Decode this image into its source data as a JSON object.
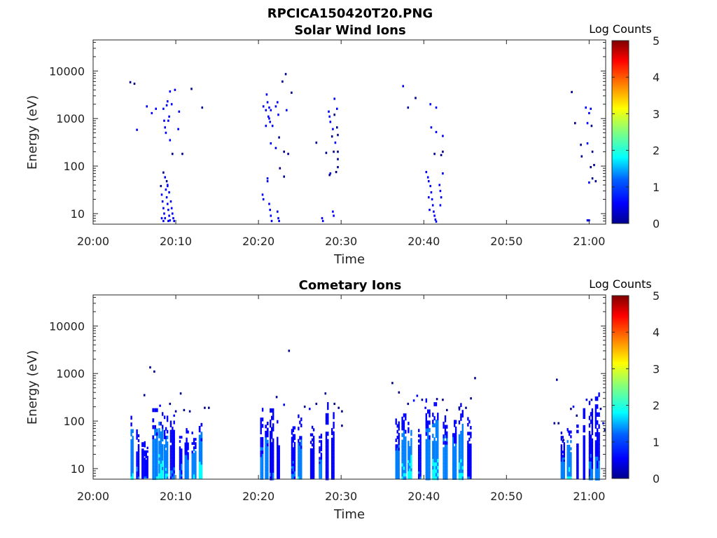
{
  "figure_title": "RPCICA150420T20.PNG",
  "colors": {
    "colormap": [
      "#00008f",
      "#0000ff",
      "#0080ff",
      "#00ffff",
      "#80ff80",
      "#ffff00",
      "#ff8000",
      "#ff0000",
      "#800000"
    ]
  },
  "chart_data": [
    {
      "type": "heatmap",
      "title": "Solar Wind Ions",
      "xlabel": "Time",
      "ylabel": "Energy (eV)",
      "x_ticks": [
        "20:00",
        "20:10",
        "20:20",
        "20:30",
        "20:40",
        "20:50",
        "21:00"
      ],
      "x_tick_minutes": [
        0,
        10,
        20,
        30,
        40,
        50,
        60
      ],
      "xlim_minutes": [
        0,
        62
      ],
      "y_scale": "log",
      "ylim": [
        6,
        45000
      ],
      "y_ticks": [
        "10",
        "100",
        "1000",
        "10000"
      ],
      "y_tick_values": [
        10,
        100,
        1000,
        10000
      ],
      "colorbar": {
        "label": "Log Counts",
        "range": [
          0,
          5
        ],
        "ticks": [
          "0",
          "1",
          "2",
          "3",
          "4",
          "5"
        ]
      },
      "points": [
        [
          4.5,
          5800,
          0.3
        ],
        [
          5.0,
          5400,
          0.3
        ],
        [
          5.3,
          580,
          0.4
        ],
        [
          6.5,
          1800,
          0.5
        ],
        [
          7.1,
          1300,
          0.4
        ],
        [
          7.6,
          1600,
          0.5
        ],
        [
          8.5,
          1600,
          0.5
        ],
        [
          8.6,
          900,
          0.6
        ],
        [
          8.7,
          650,
          0.7
        ],
        [
          8.9,
          1900,
          0.6
        ],
        [
          9.0,
          2300,
          0.5
        ],
        [
          9.2,
          1100,
          0.7
        ],
        [
          9.3,
          3700,
          0.4
        ],
        [
          9.5,
          2000,
          0.5
        ],
        [
          9.3,
          350,
          0.4
        ],
        [
          9.1,
          900,
          0.6
        ],
        [
          8.8,
          500,
          0.5
        ],
        [
          9.9,
          4000,
          0.4
        ],
        [
          10.4,
          1400,
          0.4
        ],
        [
          9.6,
          180,
          0.3
        ],
        [
          10.3,
          600,
          0.4
        ],
        [
          10.8,
          180,
          0.3
        ],
        [
          11.9,
          4200,
          0.3
        ],
        [
          13.2,
          1700,
          0.3
        ],
        [
          8.5,
          73,
          0.3
        ],
        [
          8.7,
          58,
          0.4
        ],
        [
          8.9,
          48,
          0.3
        ],
        [
          9.0,
          40,
          0.4
        ],
        [
          8.2,
          38,
          0.3
        ],
        [
          8.3,
          25,
          0.4
        ],
        [
          8.4,
          18,
          0.5
        ],
        [
          8.5,
          13,
          0.6
        ],
        [
          8.6,
          10,
          0.8
        ],
        [
          8.7,
          8,
          0.7
        ],
        [
          8.8,
          32,
          0.6
        ],
        [
          8.9,
          22,
          0.7
        ],
        [
          9.0,
          16,
          0.8
        ],
        [
          9.1,
          12,
          0.9
        ],
        [
          9.2,
          9,
          0.8
        ],
        [
          9.3,
          7.2,
          0.9
        ],
        [
          9.0,
          38,
          0.5
        ],
        [
          9.2,
          28,
          0.6
        ],
        [
          9.4,
          18,
          0.7
        ],
        [
          9.5,
          13,
          0.8
        ],
        [
          9.6,
          10,
          0.8
        ],
        [
          9.7,
          8,
          0.7
        ],
        [
          9.8,
          7,
          0.6
        ],
        [
          8.3,
          8,
          0.7
        ],
        [
          8.5,
          7,
          0.8
        ],
        [
          9.1,
          7,
          0.9
        ],
        [
          20.6,
          1800,
          0.7
        ],
        [
          20.9,
          1500,
          0.6
        ],
        [
          21.1,
          2200,
          0.5
        ],
        [
          21.3,
          1700,
          0.8
        ],
        [
          21.0,
          3200,
          0.4
        ],
        [
          21.5,
          1500,
          0.5
        ],
        [
          21.2,
          1100,
          0.6
        ],
        [
          21.3,
          1000,
          0.7
        ],
        [
          21.4,
          850,
          0.6
        ],
        [
          20.9,
          700,
          0.5
        ],
        [
          21.7,
          700,
          0.5
        ],
        [
          22.1,
          1800,
          0.4
        ],
        [
          22.3,
          2200,
          0.4
        ],
        [
          22.4,
          1200,
          0.4
        ],
        [
          22.9,
          6000,
          0.3
        ],
        [
          23.3,
          8600,
          0.3
        ],
        [
          24.0,
          3500,
          0.3
        ],
        [
          23.4,
          1500,
          0.4
        ],
        [
          23.1,
          200,
          0.3
        ],
        [
          23.6,
          180,
          0.3
        ],
        [
          21.5,
          300,
          0.4
        ],
        [
          22.5,
          400,
          0.3
        ],
        [
          22.1,
          240,
          0.4
        ],
        [
          22.6,
          90,
          0.3
        ],
        [
          23.1,
          60,
          0.3
        ],
        [
          21.1,
          55,
          0.4
        ],
        [
          20.5,
          25,
          0.5
        ],
        [
          20.6,
          20,
          0.5
        ],
        [
          21.1,
          48,
          0.4
        ],
        [
          21.3,
          16,
          0.6
        ],
        [
          21.4,
          12,
          0.7
        ],
        [
          21.5,
          9,
          0.7
        ],
        [
          21.6,
          7,
          0.7
        ],
        [
          22.3,
          11,
          0.5
        ],
        [
          22.4,
          8,
          0.5
        ],
        [
          22.5,
          7,
          0.4
        ],
        [
          28.5,
          1400,
          0.6
        ],
        [
          28.6,
          1100,
          0.6
        ],
        [
          28.7,
          850,
          0.5
        ],
        [
          29.2,
          2600,
          0.4
        ],
        [
          29.5,
          1600,
          0.4
        ],
        [
          29.2,
          1200,
          0.3
        ],
        [
          29.0,
          600,
          0.4
        ],
        [
          29.5,
          650,
          0.3
        ],
        [
          29.6,
          450,
          0.3
        ],
        [
          28.2,
          190,
          0.3
        ],
        [
          29.1,
          200,
          0.3
        ],
        [
          29.3,
          310,
          0.4
        ],
        [
          28.9,
          420,
          0.3
        ],
        [
          29.6,
          200,
          0.3
        ],
        [
          29.6,
          95,
          0.3
        ],
        [
          28.7,
          70,
          0.4
        ],
        [
          28.6,
          65,
          0.3
        ],
        [
          29.6,
          140,
          0.3
        ],
        [
          27.7,
          8,
          0.6
        ],
        [
          27.8,
          7,
          0.5
        ],
        [
          29.0,
          11,
          0.6
        ],
        [
          29.1,
          9,
          0.6
        ],
        [
          27.0,
          310,
          0.3
        ],
        [
          29.4,
          75,
          0.3
        ],
        [
          37.5,
          4800,
          0.4
        ],
        [
          38.1,
          1700,
          0.3
        ],
        [
          39.0,
          2700,
          0.3
        ],
        [
          40.8,
          2000,
          0.5
        ],
        [
          41.5,
          1700,
          0.4
        ],
        [
          40.9,
          650,
          0.4
        ],
        [
          41.5,
          520,
          0.4
        ],
        [
          42.3,
          430,
          0.4
        ],
        [
          41.3,
          180,
          0.3
        ],
        [
          42.1,
          170,
          0.3
        ],
        [
          42.3,
          200,
          0.3
        ],
        [
          40.3,
          75,
          0.5
        ],
        [
          40.5,
          58,
          0.6
        ],
        [
          40.6,
          48,
          0.6
        ],
        [
          40.8,
          38,
          0.7
        ],
        [
          40.9,
          28,
          0.7
        ],
        [
          41.0,
          20,
          0.8
        ],
        [
          41.1,
          15,
          0.8
        ],
        [
          41.2,
          11,
          0.9
        ],
        [
          41.3,
          9,
          0.8
        ],
        [
          41.4,
          7.5,
          0.9
        ],
        [
          41.5,
          6.8,
          0.8
        ],
        [
          41.9,
          40,
          0.5
        ],
        [
          42.0,
          30,
          0.5
        ],
        [
          42.3,
          70,
          0.4
        ],
        [
          42.1,
          22,
          0.6
        ],
        [
          42.0,
          15,
          0.5
        ],
        [
          40.6,
          22,
          0.5
        ],
        [
          40.7,
          12,
          0.6
        ],
        [
          57.9,
          3600,
          0.3
        ],
        [
          59.6,
          1700,
          0.5
        ],
        [
          60.0,
          1300,
          0.6
        ],
        [
          60.2,
          1600,
          0.4
        ],
        [
          59.8,
          800,
          0.4
        ],
        [
          60.3,
          700,
          0.3
        ],
        [
          58.3,
          800,
          0.3
        ],
        [
          59.0,
          280,
          0.3
        ],
        [
          59.8,
          300,
          0.4
        ],
        [
          60.4,
          200,
          0.3
        ],
        [
          59.1,
          160,
          0.3
        ],
        [
          60.6,
          105,
          0.3
        ],
        [
          60.2,
          95,
          0.3
        ],
        [
          60.0,
          45,
          0.4
        ],
        [
          60.8,
          48,
          0.3
        ],
        [
          60.4,
          55,
          0.3
        ],
        [
          59.8,
          7.2,
          0.6
        ],
        [
          60.0,
          7.2,
          0.6
        ]
      ]
    },
    {
      "type": "heatmap",
      "title": "Cometary Ions",
      "xlabel": "Time",
      "ylabel": "Energy (eV)",
      "x_ticks": [
        "20:00",
        "20:10",
        "20:20",
        "20:30",
        "20:40",
        "20:50",
        "21:00"
      ],
      "x_tick_minutes": [
        0,
        10,
        20,
        30,
        40,
        50,
        60
      ],
      "xlim_minutes": [
        0,
        62
      ],
      "y_scale": "log",
      "ylim": [
        6,
        45000
      ],
      "y_ticks": [
        "10",
        "100",
        "1000",
        "10000"
      ],
      "y_tick_values": [
        10,
        100,
        1000,
        10000
      ],
      "colorbar": {
        "label": "Log Counts",
        "range": [
          0,
          5
        ],
        "ticks": [
          "0",
          "1",
          "2",
          "3",
          "4",
          "5"
        ]
      },
      "bands": [
        [
          4.7,
          0.35,
          7,
          210,
          0.6,
          1.8
        ],
        [
          5.4,
          0.4,
          7,
          85,
          0.5,
          1.1
        ],
        [
          6.0,
          0.3,
          7,
          60,
          0.3,
          0.8
        ],
        [
          6.4,
          0.5,
          7,
          45,
          0.5,
          1.0
        ],
        [
          7.5,
          0.7,
          7,
          220,
          0.6,
          1.7
        ],
        [
          8.2,
          0.6,
          7,
          180,
          0.7,
          2.1
        ],
        [
          8.8,
          0.5,
          7,
          130,
          0.6,
          1.8
        ],
        [
          9.6,
          0.6,
          7,
          160,
          0.4,
          1.1
        ],
        [
          10.6,
          0.4,
          7,
          60,
          0.5,
          1.2
        ],
        [
          11.3,
          0.5,
          7,
          80,
          0.5,
          1.5
        ],
        [
          12.2,
          0.6,
          7,
          60,
          0.6,
          1.7
        ],
        [
          13.0,
          0.45,
          7,
          140,
          0.6,
          2.0
        ],
        [
          20.4,
          0.4,
          7,
          190,
          0.5,
          1.3
        ],
        [
          21.0,
          0.45,
          7,
          150,
          0.6,
          1.6
        ],
        [
          21.6,
          0.5,
          7,
          320,
          0.4,
          1.0
        ],
        [
          22.4,
          0.4,
          7,
          120,
          0.4,
          0.9
        ],
        [
          24.2,
          0.5,
          7,
          100,
          0.6,
          1.1
        ],
        [
          25.0,
          0.5,
          7,
          160,
          0.6,
          1.6
        ],
        [
          26.5,
          0.5,
          7,
          90,
          0.4,
          0.8
        ],
        [
          27.5,
          0.4,
          7,
          60,
          0.6,
          1.3
        ],
        [
          28.3,
          0.4,
          7,
          300,
          0.4,
          0.9
        ],
        [
          29.0,
          0.4,
          7,
          180,
          0.4,
          0.8
        ],
        [
          36.8,
          0.5,
          7,
          130,
          0.6,
          1.4
        ],
        [
          37.6,
          0.6,
          7,
          200,
          0.6,
          1.9
        ],
        [
          38.3,
          0.5,
          7,
          110,
          0.7,
          2.1
        ],
        [
          39.5,
          0.4,
          7,
          100,
          0.5,
          1.0
        ],
        [
          40.5,
          0.6,
          7,
          300,
          0.6,
          1.6
        ],
        [
          41.4,
          0.8,
          7,
          250,
          0.7,
          2.0
        ],
        [
          42.6,
          0.6,
          7,
          180,
          0.6,
          1.6
        ],
        [
          43.7,
          0.5,
          7,
          200,
          0.6,
          1.6
        ],
        [
          44.5,
          0.6,
          7,
          240,
          0.7,
          1.9
        ],
        [
          45.5,
          0.5,
          7,
          140,
          0.4,
          1.0
        ],
        [
          56.8,
          0.5,
          7,
          60,
          0.6,
          1.3
        ],
        [
          57.6,
          0.6,
          7,
          80,
          0.7,
          1.8
        ],
        [
          58.6,
          0.3,
          7,
          110,
          0.4,
          0.8
        ],
        [
          59.4,
          0.3,
          7,
          220,
          0.4,
          0.9
        ],
        [
          60.2,
          0.5,
          7,
          320,
          0.6,
          1.1
        ],
        [
          61.0,
          0.6,
          7,
          400,
          0.5,
          1.2
        ]
      ],
      "points": [
        [
          6.2,
          350,
          0.3
        ],
        [
          6.9,
          1350,
          0.3
        ],
        [
          7.4,
          1100,
          0.3
        ],
        [
          10.6,
          380,
          0.3
        ],
        [
          8.1,
          210,
          0.4
        ],
        [
          9.3,
          230,
          0.3
        ],
        [
          9.8,
          130,
          0.4
        ],
        [
          10.0,
          160,
          0.3
        ],
        [
          11.0,
          170,
          0.3
        ],
        [
          11.7,
          160,
          0.3
        ],
        [
          13.5,
          190,
          0.3
        ],
        [
          14.0,
          190,
          0.3
        ],
        [
          23.7,
          3000,
          0.3
        ],
        [
          22.2,
          320,
          0.3
        ],
        [
          23.1,
          220,
          0.4
        ],
        [
          25.6,
          200,
          0.3
        ],
        [
          26.2,
          180,
          0.4
        ],
        [
          27.0,
          230,
          0.3
        ],
        [
          28.1,
          380,
          0.3
        ],
        [
          29.2,
          230,
          0.3
        ],
        [
          29.7,
          190,
          0.3
        ],
        [
          30.1,
          160,
          0.3
        ],
        [
          30.1,
          80,
          0.3
        ],
        [
          36.2,
          630,
          0.3
        ],
        [
          37.0,
          400,
          0.3
        ],
        [
          38.1,
          230,
          0.3
        ],
        [
          38.8,
          270,
          0.4
        ],
        [
          39.2,
          340,
          0.4
        ],
        [
          39.8,
          280,
          0.3
        ],
        [
          40.2,
          190,
          0.4
        ],
        [
          41.6,
          290,
          0.3
        ],
        [
          42.3,
          280,
          0.3
        ],
        [
          42.8,
          170,
          0.3
        ],
        [
          44.3,
          190,
          0.3
        ],
        [
          45.1,
          190,
          0.3
        ],
        [
          45.7,
          300,
          0.3
        ],
        [
          46.2,
          800,
          0.3
        ],
        [
          56.1,
          740,
          0.3
        ],
        [
          56.3,
          90,
          0.3
        ],
        [
          57.8,
          180,
          0.3
        ],
        [
          58.1,
          200,
          0.4
        ],
        [
          58.5,
          130,
          0.3
        ],
        [
          59.7,
          280,
          0.4
        ],
        [
          60.3,
          280,
          0.3
        ],
        [
          60.9,
          290,
          0.4
        ],
        [
          61.4,
          180,
          0.3
        ],
        [
          61.7,
          90,
          0.4
        ],
        [
          61.9,
          65,
          0.3
        ],
        [
          57.5,
          60,
          0.4
        ],
        [
          56.9,
          40,
          0.3
        ],
        [
          55.8,
          90,
          0.3
        ]
      ]
    }
  ]
}
